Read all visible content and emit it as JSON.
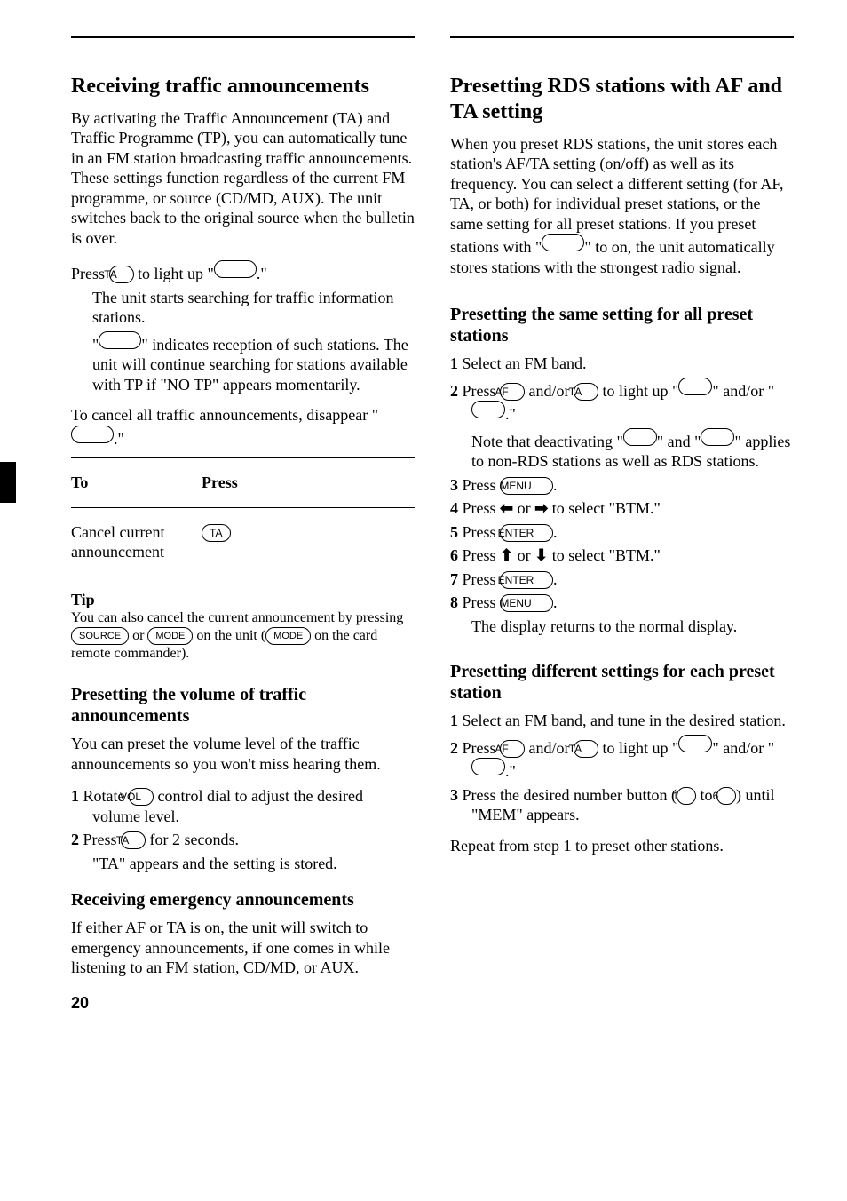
{
  "page_number": "20",
  "left": {
    "h1": "Receiving traffic announcements",
    "intro": "By activating the Traffic Announcement (TA) and Traffic Programme (TP), you can automatically tune in an FM station broadcasting traffic announcements. These settings function regardless of the current FM programme, or source (CD/MD, AUX). The unit switches back to the original source when the bulletin is over.",
    "step_pre": "Press ",
    "btn_ta": "TA",
    "step_mid": " to light up \"",
    "step_post": ".\"",
    "step_body1": "The unit starts searching for traffic information stations.",
    "step_body2a": "\"",
    "step_body2b": "\" indicates reception of such stations. The unit will continue searching for stations available with TP if \"NO TP\" appears momentarily.",
    "cancel_para_a": "To cancel all traffic announcements, disappear \"",
    "cancel_para_b": ".\"",
    "table": {
      "header_to": "To",
      "header_press": "Press",
      "row1_c1": "Cancel current announcement",
      "row1_c2": "TA"
    },
    "tip_head": "Tip",
    "tip_body_a": "You can also cancel the current announcement by pressing ",
    "btn_source": "SOURCE",
    "tip_body_b": " or ",
    "btn_mode": "MODE",
    "tip_body_c": " on the unit (",
    "tip_body_d": " on the card remote commander).",
    "h2": "Presetting the volume of traffic announcements",
    "vol_intro": "You can preset the volume level of the traffic announcements so you won't miss hearing them.",
    "vol_step1_a": "Rotate ",
    "btn_vol": "VOL",
    "vol_step1_b": " control dial to adjust the desired volume level.",
    "vol_step2_a": "Press ",
    "vol_step2_b": " for 2 seconds.",
    "vol_step2_c": "\"TA\" appears and the setting is stored.",
    "h2b": "Receiving emergency announcements",
    "emerg": "If either AF or TA is on, the unit will switch to emergency announcements, if one comes in while listening to an FM station, CD/MD, or AUX."
  },
  "right": {
    "h1": "Presetting RDS stations with AF and TA setting",
    "intro_a": "When you preset RDS stations, the unit stores each station's AF/TA setting (on/off) as well as its frequency. You can select a different setting (for AF, TA, or both) for individual preset stations, or the same setting for all preset stations. If you preset stations with \"",
    "intro_b": "\" to on, the unit automatically stores stations with the strongest radio signal.",
    "h2a": "Presetting the same setting for all preset stations",
    "s1": "Select an FM band.",
    "s2_a": "Press ",
    "btn_af": "AF",
    "s2_b": " and/or ",
    "btn_ta": "TA",
    "s2_c": " to light up \"",
    "s2_d": "\" and/or \"",
    "s2_e": ".\"",
    "note_a": "Note that deactivating \"",
    "note_b": "\" and \"",
    "note_c": "\" applies to non-RDS stations as well as RDS stations.",
    "s3_a": "Press ",
    "btn_menu": "MENU",
    "s3_b": ".",
    "s4_a": "Press ",
    "s4_b": " or ",
    "s4_c": " to select \"BTM.\"",
    "s5_a": "Press ",
    "btn_enter": "ENTER",
    "s5_b": ".",
    "s6_a": "Press ",
    "s6_b": " or ",
    "s6_c": " to select \"BTM.\"",
    "s7_a": "Press ",
    "s7_b": ".",
    "s8_a": "Press ",
    "s8_b": ".",
    "s8_c": "The display returns to the normal display.",
    "h2b": "Presetting different settings for each preset station",
    "b1_a": "Select an FM band, and tune in the desired station.",
    "b2_a": "Press ",
    "b2_b": " and/or ",
    "b2_c": " to light up \"",
    "b2_d": "\" and/or \"",
    "b2_e": ".\"",
    "b3_a": "Press the desired number button (",
    "btn_1": "1",
    "b3_b": " to ",
    "btn_6": "6",
    "b3_c": ") until \"MEM\" appears.",
    "repeat": "Repeat from step 1 to preset other stations."
  },
  "colors": {
    "text": "#000000",
    "background": "#ffffff"
  }
}
